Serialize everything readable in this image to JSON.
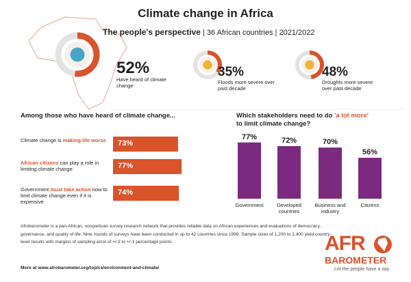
{
  "title": "Climate change in Africa",
  "subtitle": {
    "main": "The people's perspective",
    "detail": "| 36 African countries | 2021/2022"
  },
  "chart_data": [
    {
      "type": "donut",
      "values": [
        52
      ],
      "value_labels": [
        "52%"
      ],
      "label": "Have heard of climate change",
      "color": "#d9532b"
    },
    {
      "type": "donut",
      "values": [
        35
      ],
      "value_labels": [
        "35%"
      ],
      "label": "Floods more severe over past decade",
      "color": "#d9532b"
    },
    {
      "type": "donut",
      "values": [
        48
      ],
      "value_labels": [
        "48%"
      ],
      "label": "Droughts more severe over past decade",
      "color": "#d9532b"
    },
    {
      "type": "hbar",
      "title": "Among those who have heard of climate change...",
      "categories": [
        [
          {
            "text": "Climate change is "
          },
          {
            "text": "making life worse",
            "color": "#d9532b"
          }
        ],
        [
          {
            "text": "African citizens",
            "color": "#d9532b"
          },
          {
            "text": " can play a role in limiting climate change"
          }
        ],
        [
          {
            "text": "Government "
          },
          {
            "text": "must take action",
            "color": "#d9532b"
          },
          {
            "text": " now to limit climate change even if it is expensive"
          }
        ]
      ],
      "values": [
        73,
        77,
        74
      ],
      "value_labels": [
        "73%",
        "77%",
        "74%"
      ],
      "color": "#d9532b"
    },
    {
      "type": "bar",
      "title": [
        {
          "text": "Which stakeholders need to do "
        },
        {
          "text": "'a lot more'",
          "color": "#d9532b"
        },
        {
          "text": " to limit climate change?"
        }
      ],
      "categories": [
        "Government",
        "Developed countries",
        "Business and industry",
        "Citizens"
      ],
      "values": [
        77,
        72,
        70,
        56
      ],
      "value_labels": [
        "77%",
        "72%",
        "70%",
        "56%"
      ],
      "color": "#7b2a7f"
    }
  ],
  "footer": {
    "text": "Afrobarometer is a pan-African, nonpartisan survey research network that provides reliable data on African experiences and evaluations of democracy, governance, and quality of life. Nine rounds of surveys have been conducted in up to 42 countries since 1999. Sample sizes of 1,200 to 2,400 yield country-level results with margins of sampling error of +/-2 to +/-3 percentage points.",
    "link": "More at www.afrobarometer.org/topics/environment-and-climate/"
  },
  "logo": {
    "name_start": "AFR",
    "name_end": "BAROMETER",
    "tagline": "Let the people have a say"
  }
}
